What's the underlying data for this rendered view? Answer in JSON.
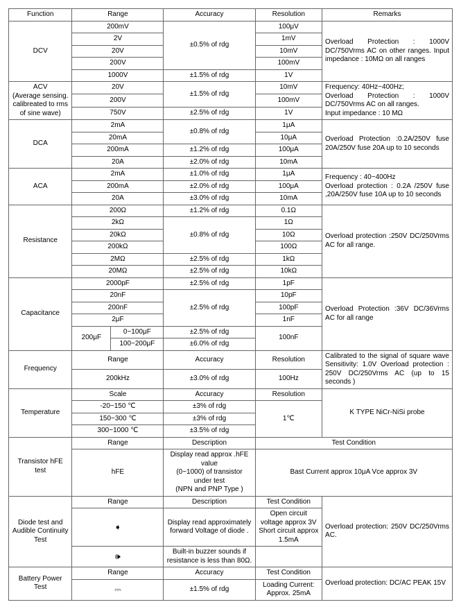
{
  "headers": {
    "func": "Function",
    "range": "Range",
    "acc": "Accuracy",
    "res": "Resolution",
    "rem": "Remarks",
    "desc": "Description",
    "tc": "Test Condition",
    "scale": "Scale"
  },
  "dcv": {
    "label": "DCV",
    "ranges": [
      "200mV",
      "2V",
      "20V",
      "200V",
      "1000V"
    ],
    "acc1": "±0.5% of rdg",
    "acc2": "±1.5% of rdg",
    "res": [
      "100μV",
      "1mV",
      "10mV",
      "100mV",
      "1V"
    ],
    "rem": "Overload Protection : 1000V DC/750Vrms AC on other ranges.\nInput impedance : 10MΩ on all ranges"
  },
  "acv": {
    "label": "ACV\n(Average sensing.\ncalibreated to rms\nof sine wave)",
    "ranges": [
      "20V",
      "200V",
      "750V"
    ],
    "acc1": "±1.5% of rdg",
    "acc2": "±2.5% of rdg",
    "res": [
      "10mV",
      "100mV",
      "1V"
    ],
    "rem": "Frequency: 40Hz~400Hz;\nOverload Protection : 1000V DC/750Vrms AC on all ranges.\nInput impedance : 10 MΩ"
  },
  "dca": {
    "label": "DCA",
    "ranges": [
      "2mA",
      "20mA",
      "200mA",
      "20A"
    ],
    "acc": [
      "±0.8% of rdg",
      "±1.2% of rdg",
      "±2.0% of rdg"
    ],
    "res": [
      "1μA",
      "10μA",
      "100μA",
      "10mA"
    ],
    "rem": "Overload Protection :0.2A/250V fuse 20A/250V fuse 20A up to 10 seconds"
  },
  "aca": {
    "label": "ACA",
    "ranges": [
      "2mA",
      "200mA",
      "20A"
    ],
    "acc": [
      "±1.0% of rdg",
      "±2.0% of rdg",
      "±3.0% of rdg"
    ],
    "res": [
      "1μA",
      "100μA",
      "10mA"
    ],
    "rem": "Frequency : 40~400Hz\nOverload protection : 0.2A /250V fuse ,20A/250V fuse 10A up to 10 seconds"
  },
  "res": {
    "label": "Resistance",
    "ranges": [
      "200Ω",
      "2kΩ",
      "20kΩ",
      "200kΩ",
      "2MΩ",
      "20MΩ"
    ],
    "acc": [
      "±1.2% of rdg",
      "±0.8% of rdg",
      "±2.5% of rdg",
      "±2.5% of rdg"
    ],
    "reso": [
      "0.1Ω",
      "1Ω",
      "10Ω",
      "100Ω",
      "1kΩ",
      "10kΩ"
    ],
    "rem": "Overload protection :250V DC/250Vrms AC for all range."
  },
  "cap": {
    "label": "Capacitance",
    "ranges": [
      "2000pF",
      "20nF",
      "200nF",
      "2μF"
    ],
    "range5": "200μF",
    "r5a": "0~100μF",
    "r5b": "100~200μF",
    "acc1": "±2.5% of rdg",
    "acc2": "±2.5% of rdg",
    "acc3": "±2.5% of rdg",
    "acc4": "±6.0% of rdg",
    "res": [
      "1pF",
      "10pF",
      "100pF",
      "1nF"
    ],
    "res5": "100nF",
    "rem": "Overload Protection :36V DC/36Vrms AC for all range"
  },
  "freq": {
    "label": "Frequency",
    "range": "200kHz",
    "acc": "±3.0% of rdg",
    "res": "100Hz",
    "rem": "Calibrated to the signal of square wave Sensitivity: 1.0V Overload protection : 250V DC/250Vrms AC (up to 15 seconds )"
  },
  "temp": {
    "label": "Temperature",
    "scale": [
      "-20~150 ℃",
      "150~300 ℃",
      "300~1000 ℃"
    ],
    "acc": [
      "±3% of rdg",
      "±3% of rdg",
      "±3.5% of rdg"
    ],
    "res": "1℃",
    "rem": "K TYPE NiCr-NiSi probe"
  },
  "hfe": {
    "label": "Transistor hFE test",
    "range": "hFE",
    "desc": "Display read approx .hFE value\n(0~1000) of transistor under test\n(NPN and PNP Type )",
    "tc": "Bast Current approx 10μA Vce approx 3V"
  },
  "diode": {
    "label": "Diode test and Audible Continuity Test",
    "sym1": "➧",
    "sym2": "🕪",
    "desc1": "Display read approximately forward Voltage of diode .",
    "desc2": "Built-in buzzer sounds if resistance is less than 80Ω.",
    "tc": "Open circuit voltage approx 3V\nShort circuit approx 1.5mA",
    "rem": "Overload protection: 250V DC/250Vrms AC."
  },
  "batt": {
    "label": "Battery Power Test",
    "sym": "⎓",
    "acc": "±1.5% of rdg",
    "tc": "Loading Current:\nApprox. 25mA",
    "rem": "Overload protection: DC/AC PEAK 15V"
  }
}
